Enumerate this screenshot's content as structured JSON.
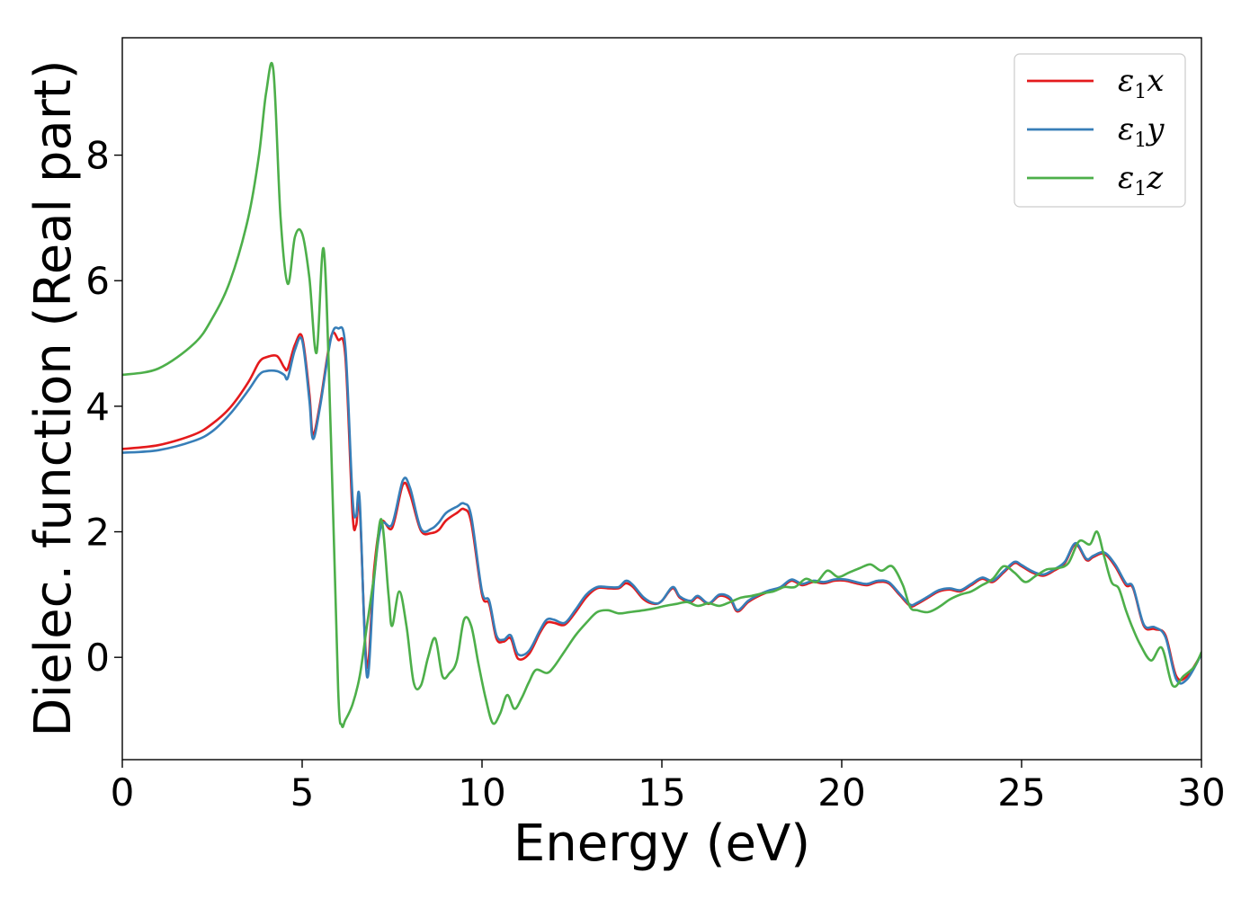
{
  "chart_data": {
    "type": "line",
    "xlabel": "Energy (eV)",
    "ylabel": "Dielec. function (Real part)",
    "xlim": [
      0,
      30
    ],
    "ylim": [
      -1.63,
      9.87
    ],
    "xticks": [
      "0",
      "5",
      "10",
      "15",
      "20",
      "25",
      "30"
    ],
    "yticks": [
      "0",
      "2",
      "4",
      "6",
      "8"
    ],
    "grid": false,
    "legend_position": "top-right",
    "series": [
      {
        "name": "ε1x",
        "legend_base": "ε",
        "legend_sub": "1",
        "legend_suffix": "x",
        "color": "#e41a1c",
        "x": [
          0,
          1,
          2,
          2.5,
          3,
          3.5,
          3.8,
          4.0,
          4.3,
          4.5,
          4.6,
          4.8,
          5.0,
          5.2,
          5.3,
          5.5,
          5.8,
          6.0,
          6.2,
          6.4,
          6.5,
          6.6,
          6.8,
          7.0,
          7.2,
          7.5,
          7.8,
          8.0,
          8.3,
          8.6,
          8.8,
          9.0,
          9.3,
          9.5,
          9.7,
          10.0,
          10.2,
          10.4,
          10.6,
          10.8,
          11.0,
          11.3,
          11.6,
          11.8,
          12.0,
          12.3,
          12.6,
          12.9,
          13.2,
          13.5,
          13.8,
          14.0,
          14.2,
          14.5,
          14.8,
          15.0,
          15.3,
          15.5,
          15.8,
          16.0,
          16.3,
          16.6,
          16.9,
          17.1,
          17.4,
          17.7,
          18.0,
          18.3,
          18.6,
          18.9,
          19.2,
          19.5,
          19.8,
          20.1,
          20.4,
          20.7,
          21.0,
          21.3,
          21.6,
          21.9,
          22.1,
          22.4,
          22.7,
          23.0,
          23.3,
          23.6,
          23.9,
          24.2,
          24.5,
          24.8,
          25.0,
          25.3,
          25.6,
          25.9,
          26.2,
          26.5,
          26.8,
          27.0,
          27.3,
          27.6,
          27.9,
          28.1,
          28.4,
          28.7,
          29.0,
          29.3,
          29.6,
          30.0
        ],
        "y": [
          3.32,
          3.38,
          3.55,
          3.72,
          3.98,
          4.38,
          4.7,
          4.78,
          4.8,
          4.62,
          4.6,
          4.98,
          5.1,
          4.2,
          3.55,
          4.05,
          5.1,
          5.06,
          4.8,
          2.3,
          2.1,
          2.38,
          -0.15,
          1.4,
          2.15,
          2.06,
          2.75,
          2.6,
          2.02,
          1.98,
          2.03,
          2.18,
          2.3,
          2.36,
          2.15,
          1.0,
          0.85,
          0.3,
          0.25,
          0.3,
          -0.02,
          0.05,
          0.38,
          0.55,
          0.55,
          0.52,
          0.72,
          0.96,
          1.1,
          1.1,
          1.1,
          1.18,
          1.12,
          0.92,
          0.85,
          0.9,
          1.1,
          0.95,
          0.88,
          0.96,
          0.85,
          0.98,
          0.92,
          0.73,
          0.88,
          0.98,
          1.05,
          1.1,
          1.22,
          1.15,
          1.2,
          1.18,
          1.22,
          1.22,
          1.18,
          1.15,
          1.2,
          1.18,
          1.0,
          0.82,
          0.85,
          0.95,
          1.05,
          1.08,
          1.05,
          1.15,
          1.25,
          1.2,
          1.35,
          1.5,
          1.45,
          1.35,
          1.3,
          1.38,
          1.5,
          1.8,
          1.55,
          1.6,
          1.65,
          1.45,
          1.15,
          1.1,
          0.5,
          0.45,
          0.35,
          -0.3,
          -0.3,
          0.05
        ]
      },
      {
        "name": "ε1y",
        "legend_base": "ε",
        "legend_sub": "1",
        "legend_suffix": "y",
        "color": "#377eb8",
        "x": [
          0,
          1,
          2,
          2.5,
          3,
          3.5,
          3.8,
          4.0,
          4.3,
          4.5,
          4.6,
          4.8,
          5.0,
          5.2,
          5.3,
          5.5,
          5.8,
          6.0,
          6.2,
          6.4,
          6.5,
          6.6,
          6.8,
          7.0,
          7.2,
          7.5,
          7.8,
          8.0,
          8.3,
          8.6,
          8.8,
          9.0,
          9.3,
          9.5,
          9.7,
          10.0,
          10.2,
          10.4,
          10.6,
          10.8,
          11.0,
          11.3,
          11.6,
          11.8,
          12.0,
          12.3,
          12.6,
          12.9,
          13.2,
          13.5,
          13.8,
          14.0,
          14.2,
          14.5,
          14.8,
          15.0,
          15.3,
          15.5,
          15.8,
          16.0,
          16.3,
          16.6,
          16.9,
          17.1,
          17.4,
          17.7,
          18.0,
          18.3,
          18.6,
          18.9,
          19.2,
          19.5,
          19.8,
          20.1,
          20.4,
          20.7,
          21.0,
          21.3,
          21.6,
          21.9,
          22.1,
          22.4,
          22.7,
          23.0,
          23.3,
          23.6,
          23.9,
          24.2,
          24.5,
          24.8,
          25.0,
          25.3,
          25.6,
          25.9,
          26.2,
          26.5,
          26.8,
          27.0,
          27.3,
          27.6,
          27.9,
          28.1,
          28.4,
          28.7,
          29.0,
          29.3,
          29.6,
          30.0
        ],
        "y": [
          3.26,
          3.3,
          3.45,
          3.6,
          3.88,
          4.25,
          4.5,
          4.56,
          4.56,
          4.5,
          4.45,
          4.9,
          5.05,
          4.1,
          3.48,
          4.0,
          5.08,
          5.24,
          4.95,
          2.55,
          2.25,
          2.5,
          -0.3,
          1.25,
          2.1,
          2.12,
          2.82,
          2.7,
          2.05,
          2.05,
          2.15,
          2.3,
          2.4,
          2.45,
          2.25,
          1.05,
          0.9,
          0.35,
          0.28,
          0.35,
          0.05,
          0.1,
          0.42,
          0.6,
          0.6,
          0.55,
          0.76,
          1.0,
          1.12,
          1.12,
          1.12,
          1.22,
          1.15,
          0.95,
          0.86,
          0.9,
          1.12,
          0.97,
          0.9,
          0.98,
          0.86,
          1.0,
          0.95,
          0.75,
          0.9,
          1.0,
          1.07,
          1.12,
          1.24,
          1.17,
          1.22,
          1.2,
          1.24,
          1.24,
          1.2,
          1.17,
          1.22,
          1.2,
          1.02,
          0.84,
          0.87,
          0.97,
          1.07,
          1.1,
          1.07,
          1.17,
          1.27,
          1.22,
          1.37,
          1.52,
          1.47,
          1.37,
          1.32,
          1.4,
          1.52,
          1.82,
          1.57,
          1.62,
          1.67,
          1.48,
          1.18,
          1.12,
          0.52,
          0.48,
          0.32,
          -0.35,
          -0.35,
          0.05
        ]
      },
      {
        "name": "ε1z",
        "legend_base": "ε",
        "legend_sub": "1",
        "legend_suffix": "z",
        "color": "#4daf4a",
        "x": [
          0,
          1,
          2,
          2.5,
          3,
          3.5,
          3.8,
          4.0,
          4.2,
          4.4,
          4.6,
          4.8,
          5.0,
          5.2,
          5.4,
          5.6,
          5.8,
          6.0,
          6.1,
          6.2,
          6.4,
          6.6,
          6.8,
          7.0,
          7.2,
          7.4,
          7.5,
          7.7,
          7.9,
          8.1,
          8.3,
          8.5,
          8.7,
          8.9,
          9.1,
          9.3,
          9.5,
          9.7,
          9.9,
          10.1,
          10.3,
          10.5,
          10.7,
          10.9,
          11.1,
          11.3,
          11.5,
          11.8,
          12.0,
          12.3,
          12.6,
          12.9,
          13.2,
          13.5,
          13.8,
          14.1,
          14.5,
          14.8,
          15.1,
          15.4,
          15.7,
          16.0,
          16.3,
          16.6,
          16.9,
          17.2,
          17.5,
          17.8,
          18.1,
          18.4,
          18.7,
          19.0,
          19.3,
          19.6,
          19.9,
          20.2,
          20.5,
          20.8,
          21.1,
          21.4,
          21.7,
          21.9,
          22.1,
          22.4,
          22.7,
          23.0,
          23.3,
          23.6,
          23.9,
          24.2,
          24.5,
          24.8,
          25.1,
          25.4,
          25.7,
          26.0,
          26.3,
          26.6,
          26.9,
          27.1,
          27.3,
          27.5,
          27.7,
          27.9,
          28.1,
          28.3,
          28.6,
          28.9,
          29.2,
          29.5,
          29.8,
          30.0
        ],
        "y": [
          4.5,
          4.6,
          5.0,
          5.4,
          6.0,
          7.0,
          8.0,
          9.0,
          9.35,
          7.0,
          5.95,
          6.7,
          6.75,
          6.05,
          4.85,
          6.5,
          3.5,
          -0.5,
          -1.08,
          -1.0,
          -0.75,
          -0.3,
          0.5,
          1.3,
          2.2,
          1.0,
          0.5,
          1.05,
          0.5,
          -0.4,
          -0.45,
          0.0,
          0.3,
          -0.3,
          -0.25,
          -0.05,
          0.6,
          0.5,
          -0.1,
          -0.65,
          -1.05,
          -0.9,
          -0.6,
          -0.82,
          -0.65,
          -0.4,
          -0.2,
          -0.25,
          -0.15,
          0.1,
          0.35,
          0.55,
          0.72,
          0.75,
          0.7,
          0.72,
          0.75,
          0.78,
          0.82,
          0.85,
          0.88,
          0.82,
          0.86,
          0.82,
          0.88,
          0.95,
          0.98,
          1.02,
          1.05,
          1.12,
          1.12,
          1.25,
          1.2,
          1.38,
          1.28,
          1.35,
          1.42,
          1.48,
          1.38,
          1.45,
          1.15,
          0.8,
          0.75,
          0.72,
          0.8,
          0.92,
          1.0,
          1.05,
          1.15,
          1.25,
          1.45,
          1.35,
          1.2,
          1.3,
          1.4,
          1.42,
          1.5,
          1.85,
          1.8,
          2.0,
          1.6,
          1.2,
          1.1,
          0.75,
          0.45,
          0.2,
          -0.05,
          0.15,
          -0.45,
          -0.3,
          -0.15,
          0.08
        ]
      }
    ]
  }
}
